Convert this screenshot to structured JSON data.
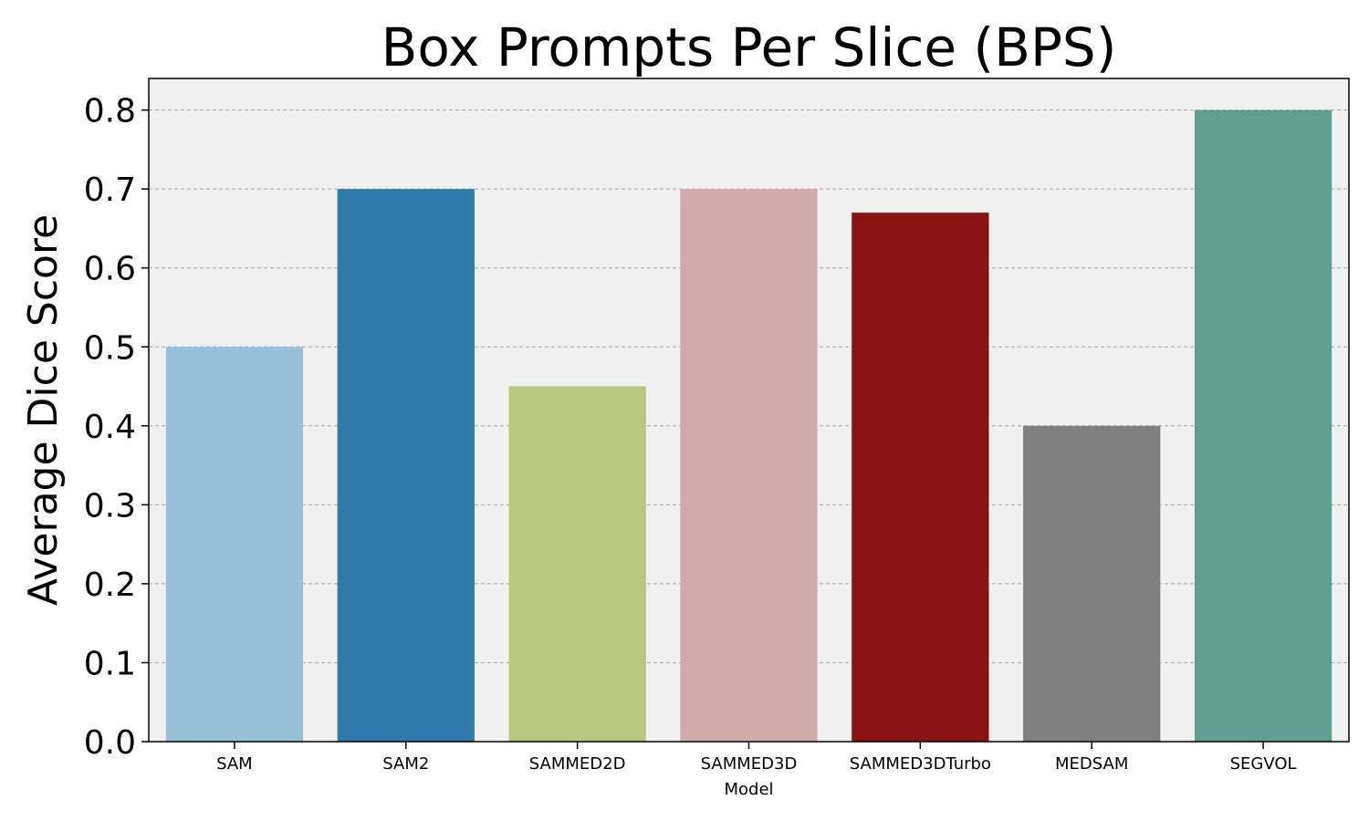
{
  "chart_data": {
    "type": "bar",
    "title": "Box Prompts Per Slice (BPS)",
    "xlabel": "Model",
    "ylabel": "Average Dice Score",
    "categories": [
      "SAM",
      "SAM2",
      "SAMMED2D",
      "SAMMED3D",
      "SAMMED3DTurbo",
      "MEDSAM",
      "SEGVOL"
    ],
    "values": [
      0.5,
      0.7,
      0.45,
      0.7,
      0.67,
      0.4,
      0.8
    ],
    "colors": [
      "#98c1d9",
      "#2e7aa8",
      "#b7c780",
      "#d1aaab",
      "#8a1315",
      "#808080",
      "#619d91"
    ],
    "ylim": [
      0,
      0.84
    ],
    "yticks": [
      "0.0",
      "0.1",
      "0.2",
      "0.3",
      "0.4",
      "0.5",
      "0.6",
      "0.7",
      "0.8"
    ],
    "grid": true,
    "plot_background": "#f0f0f0"
  }
}
